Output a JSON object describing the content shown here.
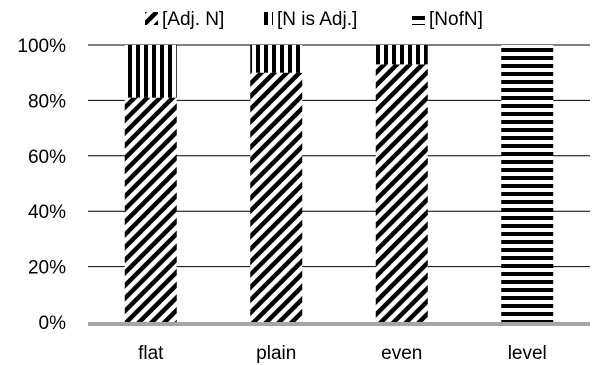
{
  "chart_data": {
    "type": "bar",
    "stacked": true,
    "percent_axis": true,
    "categories": [
      "flat",
      "plain",
      "even",
      "level"
    ],
    "series": [
      {
        "name": "[Adj. N]",
        "values": [
          81,
          90,
          93,
          0
        ],
        "pattern": "diagonal-stripes",
        "color": "#000000"
      },
      {
        "name": "[N is Adj.]",
        "values": [
          19,
          10,
          7,
          0
        ],
        "pattern": "vertical-stripes",
        "color": "#000000"
      },
      {
        "name": "[NofN]",
        "values": [
          0,
          0,
          0,
          100
        ],
        "pattern": "horizontal-stripes",
        "color": "#000000"
      }
    ],
    "ylim": [
      0,
      100
    ],
    "yticks": [
      0,
      20,
      40,
      60,
      80,
      100
    ],
    "ytick_labels": [
      "0%",
      "20%",
      "40%",
      "60%",
      "80%",
      "100%"
    ],
    "legend_position": "top",
    "grid": true,
    "xlabel": "",
    "ylabel": "",
    "title": ""
  }
}
